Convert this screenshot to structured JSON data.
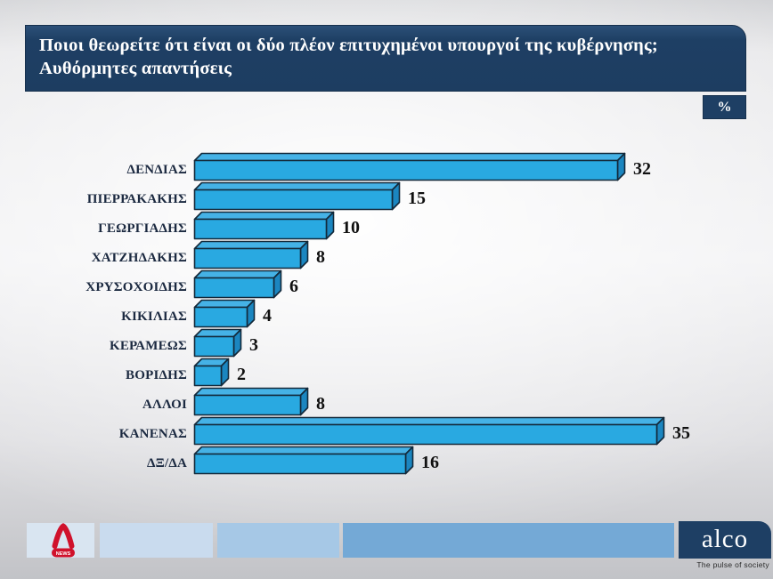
{
  "header": {
    "title_line1": "Ποιοι θεωρείτε ότι είναι οι δύο πλέον επιτυχημένοι υπουργοί της κυβέρνησης;",
    "title_line2": "Αυθόρμητες απαντήσεις",
    "unit_badge": "%"
  },
  "chart_data": {
    "type": "bar",
    "orientation": "horizontal",
    "title": "Ποιοι θεωρείτε ότι είναι οι δύο πλέον επιτυχημένοι υπουργοί της κυβέρνησης; Αυθόρμητες απαντήσεις",
    "unit": "%",
    "categories": [
      "ΔΕΝΔΙΑΣ",
      "ΠΙΕΡΡΑΚΑΚΗΣ",
      "ΓΕΩΡΓΙΑΔΗΣ",
      "ΧΑΤΖΗΔΑΚΗΣ",
      "ΧΡΥΣΟΧΟΙΔΗΣ",
      "ΚΙΚΙΛΙΑΣ",
      "ΚΕΡΑΜΕΩΣ",
      "ΒΟΡΙΔΗΣ",
      "ΑΛΛΟΙ",
      "ΚΑΝΕΝΑΣ",
      "ΔΞ/ΔΑ"
    ],
    "values": [
      32,
      15,
      10,
      8,
      6,
      4,
      3,
      2,
      8,
      35,
      16
    ],
    "xlim": [
      0,
      35
    ],
    "value_labels_shown": true,
    "grid": false,
    "legend": false,
    "colors": {
      "bar_front": "#29a9e1",
      "bar_top": "#45b2e6",
      "bar_side": "#1b86c0",
      "bar_outline": "#13293a",
      "category_label": "#1b2940",
      "value_label": "#101010"
    }
  },
  "footer": {
    "alpha_logo": {
      "brand": "ALPHA",
      "news_label": "NEWS",
      "color": "#d0112b"
    },
    "block_colors": [
      "#d9e5f1",
      "#c9dbee",
      "#a6c8e6",
      "#74a9d6"
    ],
    "alco": {
      "name": "alco",
      "tagline": "The pulse of society",
      "bg": "#1e3f64"
    }
  },
  "colors": {
    "navy": "#1e3f64",
    "background_gray": "#e8e8ea"
  }
}
